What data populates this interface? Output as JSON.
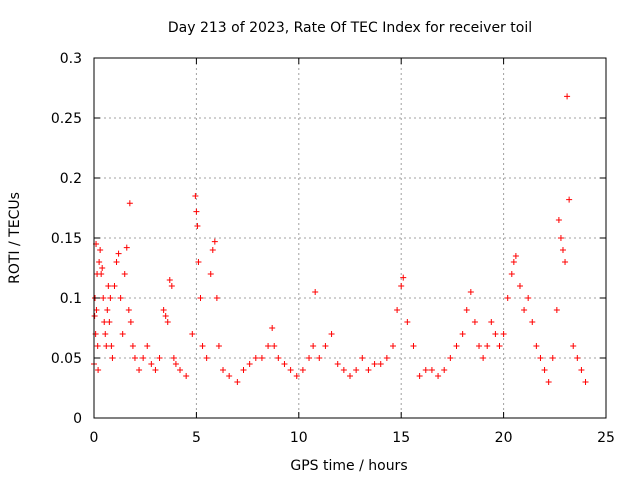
{
  "chart_data": {
    "type": "scatter",
    "title": "Day 213 of 2023, Rate Of TEC Index for receiver toil",
    "xlabel": "GPS time / hours",
    "ylabel": "ROTI / TECUs",
    "xlim": [
      0,
      25
    ],
    "ylim": [
      0,
      0.3
    ],
    "xticks": [
      0,
      5,
      10,
      15,
      20,
      25
    ],
    "xtick_labels": [
      "0",
      "5",
      "10",
      "15",
      "20",
      "25"
    ],
    "yticks": [
      0,
      0.05,
      0.1,
      0.15,
      0.2,
      0.25,
      0.3
    ],
    "ytick_labels": [
      "0",
      "0.05",
      "0.1",
      "0.15",
      "0.2",
      "0.25",
      "0.3"
    ],
    "grid": true,
    "marker": "+",
    "color": "#ff0000",
    "series": [
      {
        "name": "ROTI",
        "x": [
          0.0,
          0.03,
          0.05,
          0.08,
          0.1,
          0.12,
          0.15,
          0.18,
          0.2,
          0.25,
          0.3,
          0.35,
          0.4,
          0.45,
          0.5,
          0.55,
          0.6,
          0.65,
          0.7,
          0.75,
          0.8,
          0.85,
          0.9,
          1.0,
          1.1,
          1.2,
          1.3,
          1.4,
          1.5,
          1.6,
          1.7,
          1.75,
          1.8,
          1.9,
          2.0,
          2.2,
          2.4,
          2.6,
          2.8,
          3.0,
          3.2,
          3.4,
          3.5,
          3.6,
          3.7,
          3.8,
          3.9,
          4.0,
          4.2,
          4.5,
          4.8,
          4.95,
          5.0,
          5.05,
          5.1,
          5.2,
          5.3,
          5.5,
          5.7,
          5.8,
          5.9,
          6.0,
          6.1,
          6.3,
          6.6,
          7.0,
          7.3,
          7.6,
          7.9,
          8.2,
          8.5,
          8.7,
          8.8,
          9.0,
          9.3,
          9.6,
          9.9,
          10.2,
          10.5,
          10.7,
          10.8,
          11.0,
          11.3,
          11.6,
          11.9,
          12.2,
          12.5,
          12.8,
          13.1,
          13.4,
          13.7,
          14.0,
          14.3,
          14.6,
          14.8,
          15.0,
          15.1,
          15.3,
          15.6,
          15.9,
          16.2,
          16.5,
          16.8,
          17.1,
          17.4,
          17.7,
          18.0,
          18.2,
          18.4,
          18.6,
          18.8,
          19.0,
          19.2,
          19.4,
          19.6,
          19.8,
          20.0,
          20.2,
          20.4,
          20.5,
          20.6,
          20.8,
          21.0,
          21.2,
          21.4,
          21.6,
          21.8,
          22.0,
          22.2,
          22.4,
          22.6,
          22.7,
          22.8,
          22.9,
          23.0,
          23.1,
          23.2,
          23.4,
          23.6,
          23.8,
          24.0
        ],
        "y": [
          0.045,
          0.085,
          0.1,
          0.07,
          0.145,
          0.09,
          0.12,
          0.06,
          0.04,
          0.13,
          0.14,
          0.12,
          0.125,
          0.1,
          0.08,
          0.07,
          0.06,
          0.09,
          0.11,
          0.08,
          0.1,
          0.06,
          0.05,
          0.11,
          0.13,
          0.137,
          0.1,
          0.07,
          0.12,
          0.142,
          0.09,
          0.179,
          0.08,
          0.06,
          0.05,
          0.04,
          0.05,
          0.06,
          0.045,
          0.04,
          0.05,
          0.09,
          0.085,
          0.08,
          0.115,
          0.11,
          0.05,
          0.045,
          0.04,
          0.035,
          0.07,
          0.185,
          0.172,
          0.16,
          0.13,
          0.1,
          0.06,
          0.05,
          0.12,
          0.14,
          0.147,
          0.1,
          0.06,
          0.04,
          0.035,
          0.03,
          0.04,
          0.045,
          0.05,
          0.05,
          0.06,
          0.075,
          0.06,
          0.05,
          0.045,
          0.04,
          0.035,
          0.04,
          0.05,
          0.06,
          0.105,
          0.05,
          0.06,
          0.07,
          0.045,
          0.04,
          0.035,
          0.04,
          0.05,
          0.04,
          0.045,
          0.045,
          0.05,
          0.06,
          0.09,
          0.11,
          0.117,
          0.08,
          0.06,
          0.035,
          0.04,
          0.04,
          0.035,
          0.04,
          0.05,
          0.06,
          0.07,
          0.09,
          0.105,
          0.08,
          0.06,
          0.05,
          0.06,
          0.08,
          0.07,
          0.06,
          0.07,
          0.1,
          0.12,
          0.13,
          0.135,
          0.11,
          0.09,
          0.1,
          0.08,
          0.06,
          0.05,
          0.04,
          0.03,
          0.05,
          0.09,
          0.165,
          0.15,
          0.14,
          0.13,
          0.268,
          0.182,
          0.06,
          0.05,
          0.04,
          0.03
        ]
      }
    ]
  }
}
